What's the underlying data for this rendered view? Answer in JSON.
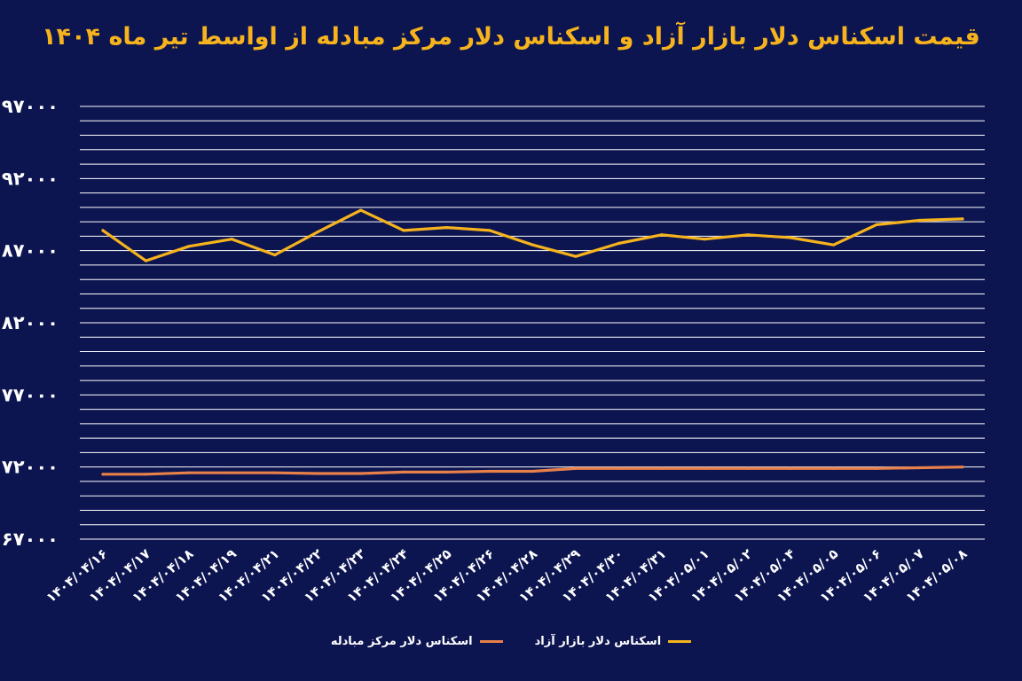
{
  "chart_data": {
    "type": "line",
    "title": "قیمت اسکناس دلار بازار آزاد و اسکناس دلار مرکز مبادله از اواسط تیر ماه ۱۴۰۴",
    "xlabel": "",
    "ylabel": "",
    "categories": [
      "۱۴۰۴/۰۴/۱۶",
      "۱۴۰۴/۰۴/۱۷",
      "۱۴۰۴/۰۴/۱۸",
      "۱۴۰۴/۰۴/۱۹",
      "۱۴۰۴/۰۴/۲۱",
      "۱۴۰۴/۰۴/۲۲",
      "۱۴۰۴/۰۴/۲۳",
      "۱۴۰۴/۰۴/۲۴",
      "۱۴۰۴/۰۴/۲۵",
      "۱۴۰۴/۰۴/۲۶",
      "۱۴۰۴/۰۴/۲۸",
      "۱۴۰۴/۰۴/۲۹",
      "۱۴۰۴/۰۴/۳۰",
      "۱۴۰۴/۰۴/۳۱",
      "۱۴۰۴/۰۵/۰۱",
      "۱۴۰۴/۰۵/۰۲",
      "۱۴۰۴/۰۵/۰۴",
      "۱۴۰۴/۰۵/۰۵",
      "۱۴۰۴/۰۵/۰۶",
      "۱۴۰۴/۰۵/۰۷",
      "۱۴۰۴/۰۵/۰۸"
    ],
    "series": [
      {
        "name": "اسکناس دلار بازار آزاد",
        "color": "#f6b31d",
        "values": [
          88400,
          86300,
          87300,
          87800,
          86700,
          88300,
          89800,
          88400,
          88600,
          88400,
          87400,
          86600,
          87500,
          88100,
          87800,
          88100,
          87900,
          87400,
          88800,
          89100,
          89200
        ]
      },
      {
        "name": "اسکناس دلار مرکز مبادله",
        "color": "#e8804a",
        "values": [
          71500,
          71500,
          71600,
          71600,
          71600,
          71550,
          71550,
          71650,
          71650,
          71700,
          71700,
          71900,
          71900,
          71900,
          71900,
          71900,
          71900,
          71900,
          71900,
          71950,
          72000
        ]
      }
    ],
    "yticks": [
      "۶۷۰۰۰",
      "۷۲۰۰۰",
      "۷۷۰۰۰",
      "۸۲۰۰۰",
      "۸۷۰۰۰",
      "۹۲۰۰۰",
      "۹۷۰۰۰"
    ],
    "ytick_values": [
      67000,
      72000,
      77000,
      82000,
      87000,
      92000,
      97000
    ],
    "ylim": [
      67000,
      97000
    ],
    "minor_step": 1000,
    "grid": true,
    "legend": "bottom-center"
  }
}
